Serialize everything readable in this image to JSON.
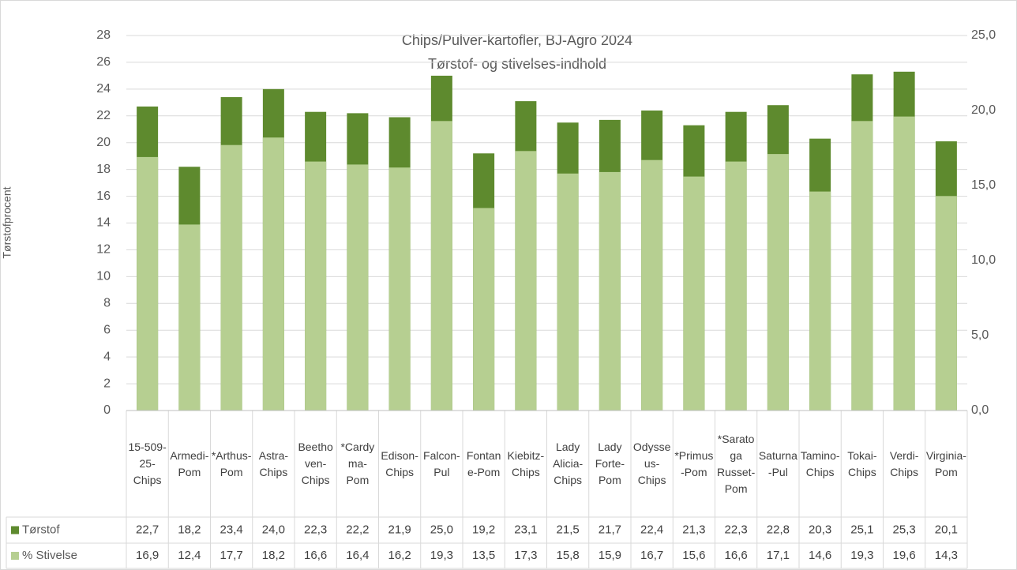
{
  "chart_data": {
    "type": "bar",
    "title": "Chips/Pulver-kartofler, BJ-Agro 2024",
    "subtitle": "Tørstof- og stivelses-indhold",
    "ylabel": "Tørstofprocent",
    "categories": [
      "15-509-25-Chips",
      "Armedi-Pom",
      "*Arthus-Pom",
      "Astra-Chips",
      "Beethoven-Chips",
      "*Cardyma-Pom",
      "Edison-Chips",
      "Falcon-Pul",
      "Fontane-Pom",
      "Kiebitz-Chips",
      "Lady Alicia-Chips",
      "Lady Forte-Pom",
      "Odysseus-Chips",
      "*Primus-Pom",
      "*Saratoga Russet-Pom",
      "Saturna-Pul",
      "Tamino-Chips",
      "Tokai-Chips",
      "Verdi-Chips",
      "Virginia-Pom"
    ],
    "series": [
      {
        "name": "Tørstof",
        "color": "#5e8a2e",
        "values": [
          22.7,
          18.2,
          23.4,
          24.0,
          22.3,
          22.2,
          21.9,
          25.0,
          19.2,
          23.1,
          21.5,
          21.7,
          22.4,
          21.3,
          22.3,
          22.8,
          20.3,
          25.1,
          25.3,
          20.1
        ],
        "value_labels": [
          "22,7",
          "18,2",
          "23,4",
          "24,0",
          "22,3",
          "22,2",
          "21,9",
          "25,0",
          "19,2",
          "23,1",
          "21,5",
          "21,7",
          "22,4",
          "21,3",
          "22,3",
          "22,8",
          "20,3",
          "25,1",
          "25,3",
          "20,1"
        ]
      },
      {
        "name": "% Stivelse",
        "color": "#b6cf91",
        "axis": "y2",
        "values": [
          16.9,
          12.4,
          17.7,
          18.2,
          16.6,
          16.4,
          16.2,
          19.3,
          13.5,
          17.3,
          15.8,
          15.9,
          16.7,
          15.6,
          16.6,
          17.1,
          14.6,
          19.3,
          19.6,
          14.3
        ],
        "value_labels": [
          "16,9",
          "12,4",
          "17,7",
          "18,2",
          "16,6",
          "16,4",
          "16,2",
          "19,3",
          "13,5",
          "17,3",
          "15,8",
          "15,9",
          "16,7",
          "15,6",
          "16,6",
          "17,1",
          "14,6",
          "19,3",
          "19,6",
          "14,3"
        ]
      }
    ],
    "ylim": [
      0,
      28
    ],
    "yticks": [
      0,
      2,
      4,
      6,
      8,
      10,
      12,
      14,
      16,
      18,
      20,
      22,
      24,
      26,
      28
    ],
    "y2lim": [
      0,
      25
    ],
    "y2ticks": [
      {
        "value": 0,
        "label": "0,0"
      },
      {
        "value": 5,
        "label": "5,0"
      },
      {
        "value": 10,
        "label": "10,0"
      },
      {
        "value": 15,
        "label": "15,0"
      },
      {
        "value": 20,
        "label": "20,0"
      },
      {
        "value": 25,
        "label": "25,0"
      }
    ],
    "grid": true
  }
}
